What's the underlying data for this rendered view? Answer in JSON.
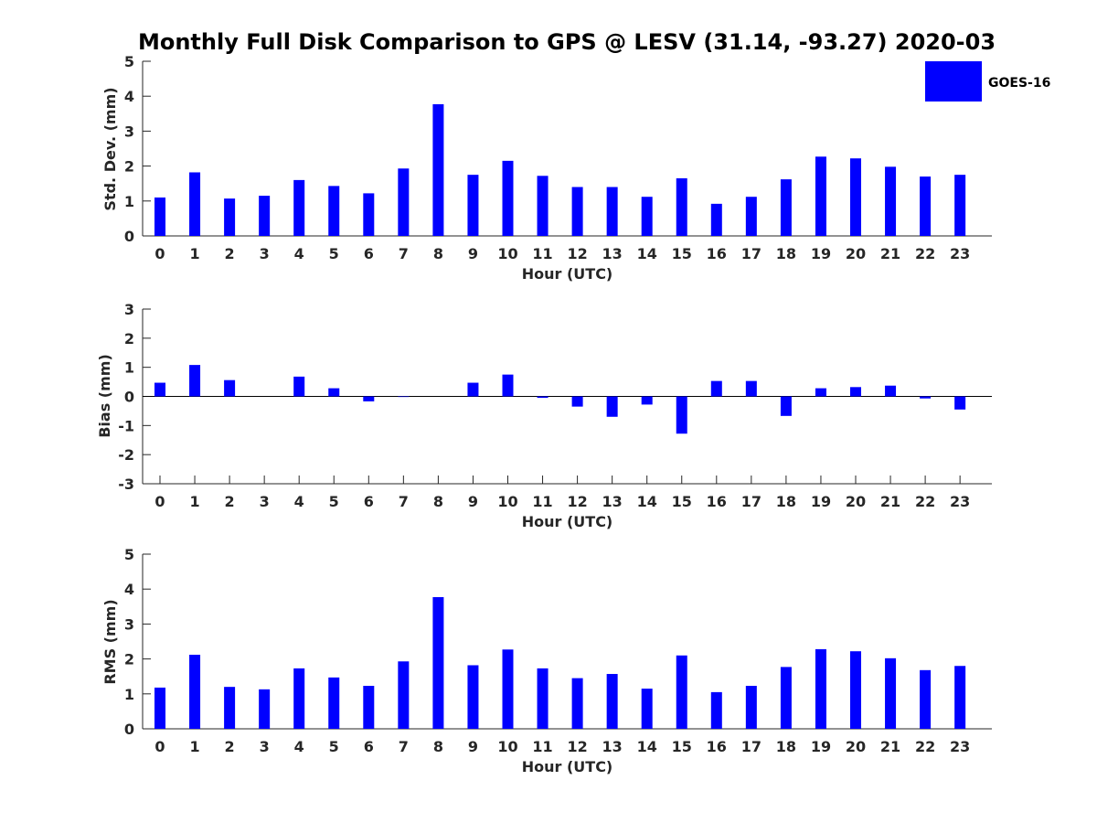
{
  "figure": {
    "title": "Monthly Full Disk Comparison to GPS @ LESV (31.14, -93.27) 2020-03",
    "legend": {
      "label": "GOES-16",
      "color": "#0000ff"
    }
  },
  "chart_data": [
    {
      "type": "bar",
      "name": "std-dev",
      "xlabel": "Hour (UTC)",
      "ylabel": "Std. Dev. (mm)",
      "ylim": [
        0,
        5
      ],
      "yticks": [
        0,
        1,
        2,
        3,
        4,
        5
      ],
      "categories": [
        "0",
        "1",
        "2",
        "3",
        "4",
        "5",
        "6",
        "7",
        "8",
        "9",
        "10",
        "11",
        "12",
        "13",
        "14",
        "15",
        "16",
        "17",
        "18",
        "19",
        "20",
        "21",
        "22",
        "23"
      ],
      "series": [
        {
          "name": "GOES-16",
          "values": [
            1.1,
            1.82,
            1.07,
            1.15,
            1.6,
            1.43,
            1.22,
            1.93,
            3.77,
            1.75,
            2.15,
            1.72,
            1.4,
            1.4,
            1.12,
            1.65,
            0.92,
            1.12,
            1.62,
            2.27,
            2.22,
            1.98,
            1.7,
            1.75
          ]
        }
      ]
    },
    {
      "type": "bar",
      "name": "bias",
      "xlabel": "Hour (UTC)",
      "ylabel": "Bias (mm)",
      "ylim": [
        -3,
        3
      ],
      "yticks": [
        -3,
        -2,
        -1,
        0,
        1,
        2,
        3
      ],
      "categories": [
        "0",
        "1",
        "2",
        "3",
        "4",
        "5",
        "6",
        "7",
        "8",
        "9",
        "10",
        "11",
        "12",
        "13",
        "14",
        "15",
        "16",
        "17",
        "18",
        "19",
        "20",
        "21",
        "22",
        "23"
      ],
      "series": [
        {
          "name": "GOES-16",
          "values": [
            0.47,
            1.08,
            0.56,
            0.0,
            0.68,
            0.28,
            -0.17,
            -0.02,
            0.0,
            0.47,
            0.75,
            -0.05,
            -0.35,
            -0.7,
            -0.28,
            -1.28,
            0.53,
            0.53,
            -0.67,
            0.28,
            0.32,
            0.37,
            -0.07,
            -0.45
          ]
        }
      ]
    },
    {
      "type": "bar",
      "name": "rms",
      "xlabel": "Hour (UTC)",
      "ylabel": "RMS (mm)",
      "ylim": [
        0,
        5
      ],
      "yticks": [
        0,
        1,
        2,
        3,
        4,
        5
      ],
      "categories": [
        "0",
        "1",
        "2",
        "3",
        "4",
        "5",
        "6",
        "7",
        "8",
        "9",
        "10",
        "11",
        "12",
        "13",
        "14",
        "15",
        "16",
        "17",
        "18",
        "19",
        "20",
        "21",
        "22",
        "23"
      ],
      "series": [
        {
          "name": "GOES-16",
          "values": [
            1.18,
            2.12,
            1.2,
            1.13,
            1.73,
            1.47,
            1.23,
            1.93,
            3.77,
            1.82,
            2.27,
            1.73,
            1.45,
            1.57,
            1.15,
            2.1,
            1.05,
            1.23,
            1.77,
            2.28,
            2.22,
            2.02,
            1.68,
            1.8
          ]
        }
      ]
    }
  ]
}
